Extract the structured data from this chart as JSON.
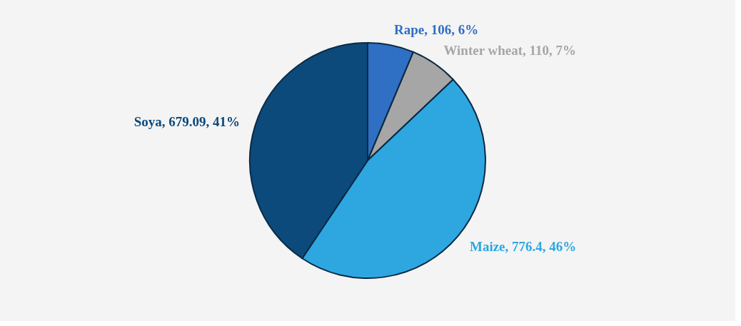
{
  "chart_data": {
    "type": "pie",
    "categories": [
      "Rape",
      "Winter wheat",
      "Maize",
      "Soya"
    ],
    "values": [
      106,
      110,
      776.4,
      679.09
    ],
    "colors": [
      "#2f6fc4",
      "#a6a6a6",
      "#2ea7e0",
      "#0c4a7c"
    ],
    "value_labels": [
      "106, 6%",
      "110, 7%",
      "776.4, 46%",
      "679.09, 41%"
    ],
    "legend": false
  }
}
